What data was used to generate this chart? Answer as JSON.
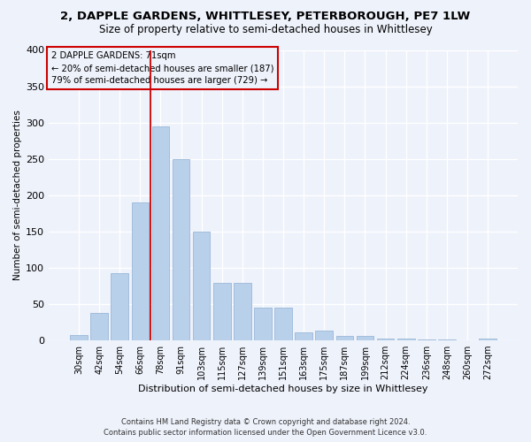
{
  "title": "2, DAPPLE GARDENS, WHITTLESEY, PETERBOROUGH, PE7 1LW",
  "subtitle": "Size of property relative to semi-detached houses in Whittlesey",
  "xlabel": "Distribution of semi-detached houses by size in Whittlesey",
  "ylabel": "Number of semi-detached properties",
  "categories": [
    "30sqm",
    "42sqm",
    "54sqm",
    "66sqm",
    "78sqm",
    "91sqm",
    "103sqm",
    "115sqm",
    "127sqm",
    "139sqm",
    "151sqm",
    "163sqm",
    "175sqm",
    "187sqm",
    "199sqm",
    "212sqm",
    "224sqm",
    "236sqm",
    "248sqm",
    "260sqm",
    "272sqm"
  ],
  "values": [
    7,
    38,
    93,
    190,
    295,
    250,
    150,
    79,
    79,
    45,
    45,
    11,
    13,
    6,
    6,
    3,
    2,
    1,
    1,
    0,
    3
  ],
  "bar_color": "#b8d0ea",
  "bar_edge_color": "#9ab8d8",
  "vline_color": "#cc0000",
  "annotation_title": "2 DAPPLE GARDENS: 71sqm",
  "annotation_line1": "← 20% of semi-detached houses are smaller (187)",
  "annotation_line2": "79% of semi-detached houses are larger (729) →",
  "annotation_box_color": "#cc0000",
  "ylim": [
    0,
    400
  ],
  "yticks": [
    0,
    50,
    100,
    150,
    200,
    250,
    300,
    350,
    400
  ],
  "footer_line1": "Contains HM Land Registry data © Crown copyright and database right 2024.",
  "footer_line2": "Contains public sector information licensed under the Open Government Licence v3.0.",
  "bg_color": "#eef2fb",
  "grid_color": "#ffffff",
  "title_fontsize": 9.5,
  "subtitle_fontsize": 8.5
}
